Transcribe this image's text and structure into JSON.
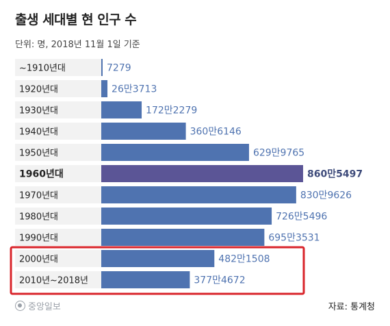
{
  "header": {
    "title": "출생 세대별 현 인구 수",
    "subtitle": "단위: 명, 2018년 11월 1일 기준"
  },
  "footer": {
    "logo_text": "중앙일보",
    "source": "자료: 통계청"
  },
  "colors": {
    "bar": "#4f73b0",
    "bar_highlight": "#5b5596",
    "value_text": "#4f73b0",
    "value_text_highlight": "#3d4a7a",
    "box_highlight": "#d9252b",
    "row_bg": "#f2f2f2"
  },
  "chart_data": {
    "type": "bar",
    "orientation": "horizontal",
    "title": "출생 세대별 현 인구 수",
    "unit": "명",
    "categories": [
      "~1910년대",
      "1920년대",
      "1930년대",
      "1940년대",
      "1950년대",
      "1960년대",
      "1970년대",
      "1980년대",
      "1990년대",
      "2000년대",
      "2010년~2018년"
    ],
    "values": [
      7279,
      263713,
      1722279,
      3606146,
      6299765,
      8605497,
      8309626,
      7265496,
      6953531,
      4821508,
      3774672
    ],
    "value_labels": [
      "7279",
      "26만3713",
      "172만2279",
      "360만6146",
      "629만9765",
      "860만5497",
      "830만9626",
      "726만5496",
      "695만3531",
      "482만1508",
      "377만4672"
    ],
    "highlight_index": 5,
    "boxed_indices": [
      9,
      10
    ],
    "xlim": [
      0,
      8605497
    ]
  }
}
